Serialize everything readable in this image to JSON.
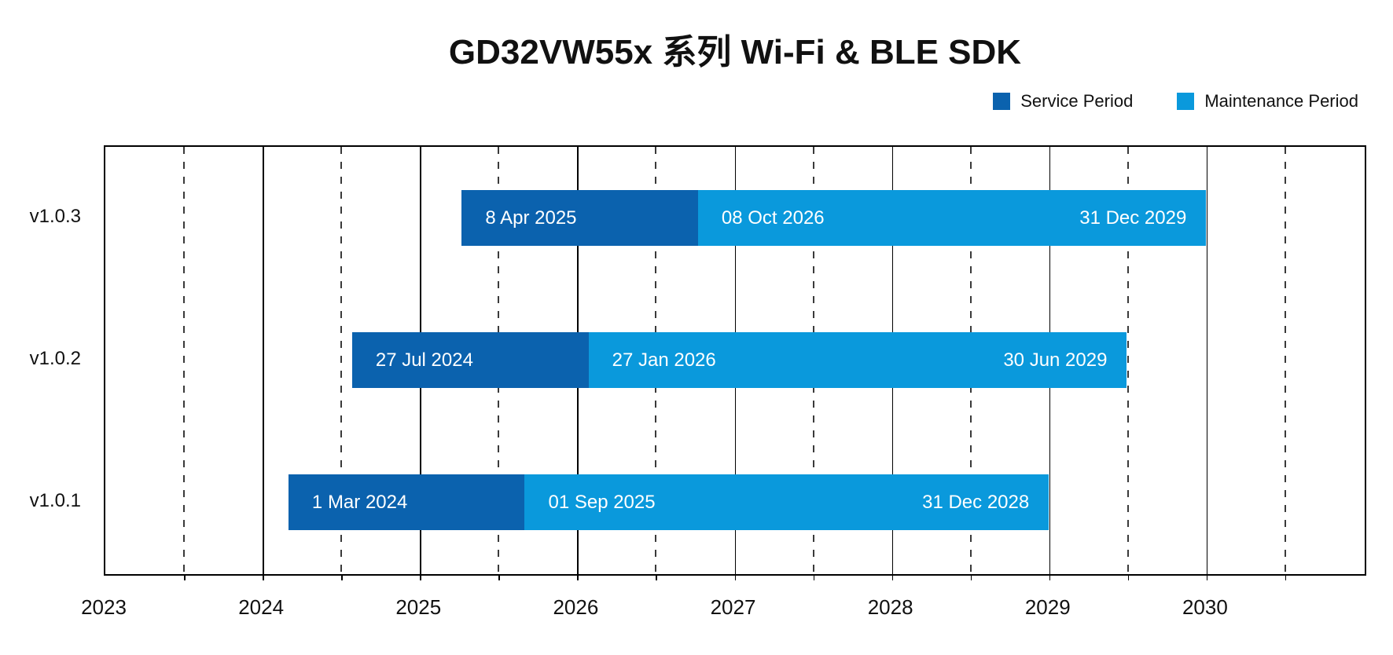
{
  "title": "GD32VW55x 系列 Wi-Fi & BLE SDK",
  "colors": {
    "service": "#0b62ae",
    "maintenance": "#0a99dc",
    "axis": "#000000",
    "grid_dash": "#3a3a3a",
    "bar_text": "#ffffff",
    "background": "#ffffff"
  },
  "legend": {
    "items": [
      {
        "label": "Service Period",
        "color_key": "service"
      },
      {
        "label": "Maintenance Period",
        "color_key": "maintenance"
      }
    ],
    "position": "top-right"
  },
  "chart_data": {
    "type": "bar",
    "subtype": "gantt-timeline",
    "title": "GD32VW55x 系列 Wi-Fi & BLE SDK",
    "x_axis": {
      "start_year": 2023,
      "end_year": 2031,
      "tick_labels": [
        "2023",
        "2024",
        "2025",
        "2026",
        "2027",
        "2028",
        "2029",
        "2030"
      ],
      "solid_gridline_every_year": true,
      "dashed_gridline_every_half_year": true
    },
    "legend_entries": [
      "Service Period",
      "Maintenance Period"
    ],
    "rows": [
      {
        "version": "v1.0.3",
        "service_start": {
          "date": "2025-04-08",
          "label": "8 Apr 2025"
        },
        "maintenance_start": {
          "date": "2026-10-08",
          "label": "08 Oct 2026"
        },
        "end": {
          "date": "2029-12-31",
          "label": "31 Dec 2029"
        }
      },
      {
        "version": "v1.0.2",
        "service_start": {
          "date": "2024-07-27",
          "label": "27 Jul 2024"
        },
        "maintenance_start": {
          "date": "2026-01-27",
          "label": "27 Jan 2026"
        },
        "end": {
          "date": "2029-06-30",
          "label": "30 Jun 2029"
        }
      },
      {
        "version": "v1.0.1",
        "service_start": {
          "date": "2024-03-01",
          "label": "1 Mar 2024"
        },
        "maintenance_start": {
          "date": "2025-09-01",
          "label": "01 Sep 2025"
        },
        "end": {
          "date": "2028-12-31",
          "label": "31 Dec 2028"
        }
      }
    ]
  }
}
